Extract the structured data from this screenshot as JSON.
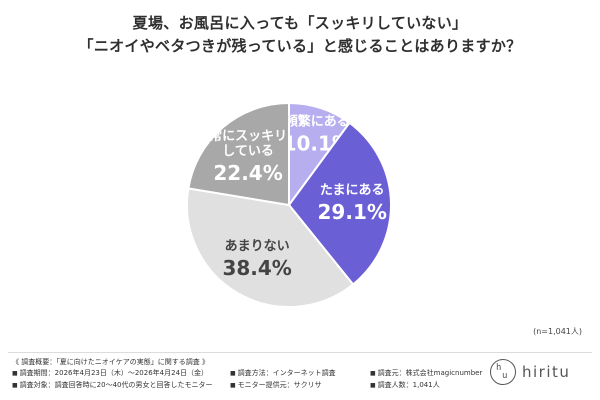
{
  "chart_data": {
    "type": "pie",
    "title_lines": [
      "夏場、お風呂に入っても「スッキリしていない」",
      "「ニオイやベタつきが残っている」と感じることはありますか？"
    ],
    "slices": [
      {
        "label": "頻繁にある",
        "value": 10.1,
        "value_text": "10.1%",
        "color": "#b7aef0",
        "text_color": "#ffffff"
      },
      {
        "label": "たまにある",
        "value": 29.1,
        "value_text": "29.1%",
        "color": "#6a5fd4",
        "text_color": "#ffffff"
      },
      {
        "label": "あまりない",
        "value": 38.4,
        "value_text": "38.4%",
        "color": "#e0e0e0",
        "text_color": "#444444"
      },
      {
        "label": "常にスッキリしている",
        "label_lines": [
          "常にスッキリ",
          "している"
        ],
        "value": 22.4,
        "value_text": "22.4%",
        "color": "#a8a8a8",
        "text_color": "#ffffff"
      }
    ],
    "start": "12 o'clock",
    "direction": "clockwise"
  },
  "note": "(n=1,041人)",
  "footer": {
    "heading": "《 調査概要：「夏に向けたニオイケアの実態」に関する調査 》",
    "period": "調査期間：2026年4月23日（木）～2026年4月24日（金）",
    "method": "調査方法：インターネット調査",
    "source": "調査元：株式会社magicnumber",
    "target": "調査対象：調査回答時に20～40代の男女と回答したモニター",
    "provider": "モニター提供元：サクリサ",
    "count": "調査人数：1,041人"
  },
  "logo": {
    "text": "hiritu",
    "mark_top": "h",
    "mark_bottom": "u"
  }
}
